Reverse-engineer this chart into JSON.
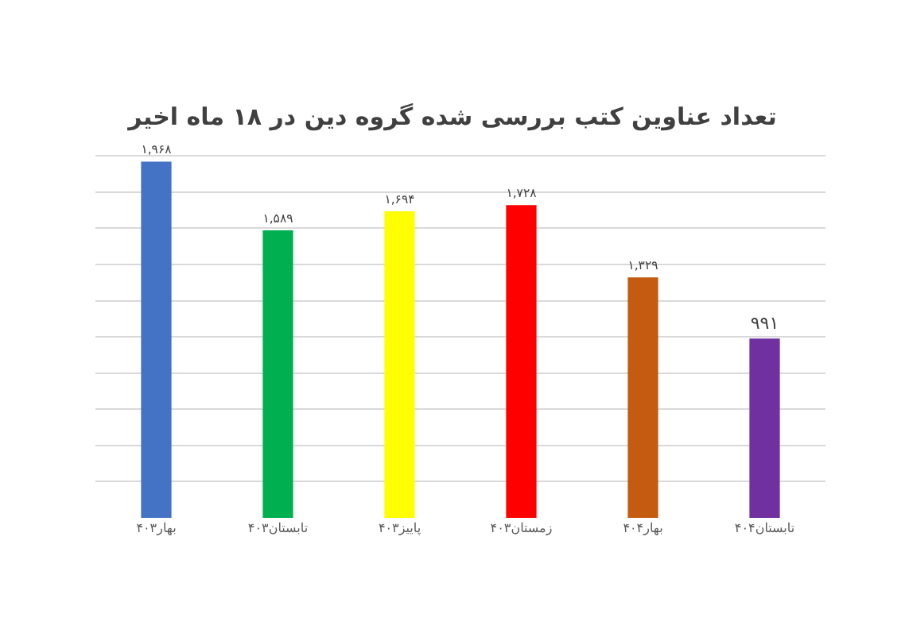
{
  "chart_data": {
    "type": "bar",
    "title": "تعداد عناوین کتب بررسی شده گروه دین در ۱۸ ماه اخیر",
    "categories": [
      "بهار۴۰۳",
      "تابستان۴۰۳",
      "پاییز۴۰۳",
      "زمستان۴۰۳",
      "بهار۴۰۴",
      "تابستان۴۰۴"
    ],
    "values": [
      1968,
      1589,
      1694,
      1728,
      1329,
      991
    ],
    "value_labels": [
      "۱,۹۶۸",
      "۱,۵۸۹",
      "۱,۶۹۴",
      "۱,۷۲۸",
      "۱,۳۲۹",
      "۹۹۱"
    ],
    "colors": [
      "#4472c4",
      "#00b050",
      "#ffff00",
      "#ff0000",
      "#c55a11",
      "#7030a0"
    ],
    "grid": "y",
    "tick_labels": "x"
  }
}
